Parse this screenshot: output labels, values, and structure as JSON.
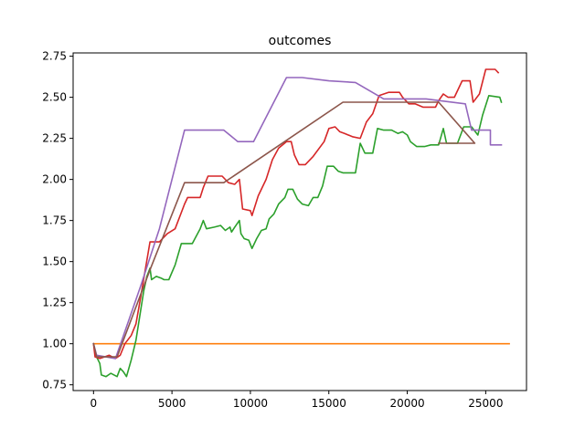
{
  "chart_data": {
    "type": "line",
    "title": "outcomes",
    "xlabel": "",
    "ylabel": "",
    "xlim": [
      -1300,
      27600
    ],
    "ylim": [
      0.715,
      2.77
    ],
    "xticks": [
      0,
      5000,
      10000,
      15000,
      20000,
      25000
    ],
    "xtick_labels": [
      "0",
      "5000",
      "10000",
      "15000",
      "20000",
      "25000"
    ],
    "yticks": [
      0.75,
      1.0,
      1.25,
      1.5,
      1.75,
      2.0,
      2.25,
      2.5,
      2.75
    ],
    "ytick_labels": [
      "0.75",
      "1.00",
      "1.25",
      "1.50",
      "1.75",
      "2.00",
      "2.25",
      "2.50",
      "2.75"
    ],
    "grid": false,
    "series": [
      {
        "color": "#ff7f0e",
        "points": [
          [
            0,
            1.0
          ],
          [
            26500,
            1.0
          ]
        ]
      },
      {
        "color": "#2ca02c",
        "points": [
          [
            0,
            1.0
          ],
          [
            200,
            0.92
          ],
          [
            400,
            0.88
          ],
          [
            500,
            0.81
          ],
          [
            800,
            0.8
          ],
          [
            1100,
            0.82
          ],
          [
            1500,
            0.8
          ],
          [
            1700,
            0.85
          ],
          [
            1900,
            0.83
          ],
          [
            2100,
            0.8
          ],
          [
            2400,
            0.9
          ],
          [
            2700,
            1.02
          ],
          [
            3000,
            1.2
          ],
          [
            3200,
            1.32
          ],
          [
            3400,
            1.41
          ],
          [
            3600,
            1.46
          ],
          [
            3700,
            1.39
          ],
          [
            4000,
            1.41
          ],
          [
            4300,
            1.4
          ],
          [
            4500,
            1.39
          ],
          [
            4800,
            1.39
          ],
          [
            5200,
            1.48
          ],
          [
            5600,
            1.61
          ],
          [
            6300,
            1.61
          ],
          [
            6800,
            1.7
          ],
          [
            7000,
            1.75
          ],
          [
            7200,
            1.7
          ],
          [
            7700,
            1.71
          ],
          [
            8100,
            1.72
          ],
          [
            8400,
            1.69
          ],
          [
            8700,
            1.71
          ],
          [
            8800,
            1.68
          ],
          [
            9000,
            1.71
          ],
          [
            9300,
            1.75
          ],
          [
            9400,
            1.67
          ],
          [
            9600,
            1.64
          ],
          [
            9900,
            1.63
          ],
          [
            10100,
            1.58
          ],
          [
            10400,
            1.64
          ],
          [
            10700,
            1.69
          ],
          [
            11000,
            1.7
          ],
          [
            11200,
            1.76
          ],
          [
            11500,
            1.79
          ],
          [
            11800,
            1.85
          ],
          [
            12200,
            1.89
          ],
          [
            12400,
            1.94
          ],
          [
            12700,
            1.94
          ],
          [
            13000,
            1.88
          ],
          [
            13300,
            1.85
          ],
          [
            13700,
            1.84
          ],
          [
            14000,
            1.89
          ],
          [
            14300,
            1.89
          ],
          [
            14600,
            1.96
          ],
          [
            14900,
            2.08
          ],
          [
            15300,
            2.08
          ],
          [
            15600,
            2.05
          ],
          [
            15900,
            2.04
          ],
          [
            16300,
            2.04
          ],
          [
            16700,
            2.04
          ],
          [
            17000,
            2.22
          ],
          [
            17300,
            2.16
          ],
          [
            17800,
            2.16
          ],
          [
            18100,
            2.31
          ],
          [
            18500,
            2.3
          ],
          [
            19000,
            2.3
          ],
          [
            19400,
            2.28
          ],
          [
            19700,
            2.29
          ],
          [
            20000,
            2.27
          ],
          [
            20200,
            2.23
          ],
          [
            20600,
            2.2
          ],
          [
            21100,
            2.2
          ],
          [
            21500,
            2.21
          ],
          [
            22000,
            2.21
          ],
          [
            22300,
            2.31
          ],
          [
            22500,
            2.22
          ],
          [
            22800,
            2.22
          ],
          [
            23200,
            2.22
          ],
          [
            23600,
            2.32
          ],
          [
            24100,
            2.32
          ],
          [
            24500,
            2.27
          ],
          [
            24800,
            2.39
          ],
          [
            25200,
            2.51
          ],
          [
            25900,
            2.5
          ],
          [
            26000,
            2.47
          ]
        ]
      },
      {
        "color": "#d62728",
        "points": [
          [
            0,
            1.0
          ],
          [
            100,
            0.92
          ],
          [
            400,
            0.91
          ],
          [
            700,
            0.92
          ],
          [
            1000,
            0.93
          ],
          [
            1400,
            0.91
          ],
          [
            1700,
            0.93
          ],
          [
            2000,
            1.0
          ],
          [
            2400,
            1.05
          ],
          [
            2700,
            1.12
          ],
          [
            3000,
            1.28
          ],
          [
            3300,
            1.45
          ],
          [
            3600,
            1.62
          ],
          [
            4200,
            1.62
          ],
          [
            4700,
            1.67
          ],
          [
            5200,
            1.7
          ],
          [
            5800,
            1.85
          ],
          [
            6000,
            1.89
          ],
          [
            6800,
            1.89
          ],
          [
            7000,
            1.95
          ],
          [
            7300,
            2.02
          ],
          [
            8200,
            2.02
          ],
          [
            8600,
            1.98
          ],
          [
            9000,
            1.97
          ],
          [
            9300,
            2.0
          ],
          [
            9500,
            1.82
          ],
          [
            10000,
            1.81
          ],
          [
            10100,
            1.78
          ],
          [
            10500,
            1.9
          ],
          [
            11000,
            2.0
          ],
          [
            11400,
            2.12
          ],
          [
            11800,
            2.19
          ],
          [
            12300,
            2.23
          ],
          [
            12600,
            2.23
          ],
          [
            12800,
            2.15
          ],
          [
            13100,
            2.09
          ],
          [
            13500,
            2.09
          ],
          [
            14000,
            2.14
          ],
          [
            14700,
            2.23
          ],
          [
            15000,
            2.31
          ],
          [
            15400,
            2.32
          ],
          [
            15700,
            2.29
          ],
          [
            16000,
            2.28
          ],
          [
            16500,
            2.26
          ],
          [
            17000,
            2.25
          ],
          [
            17400,
            2.35
          ],
          [
            17800,
            2.4
          ],
          [
            18200,
            2.51
          ],
          [
            18800,
            2.53
          ],
          [
            19500,
            2.53
          ],
          [
            19700,
            2.5
          ],
          [
            20100,
            2.46
          ],
          [
            20500,
            2.46
          ],
          [
            21000,
            2.44
          ],
          [
            21400,
            2.44
          ],
          [
            21800,
            2.44
          ],
          [
            22000,
            2.48
          ],
          [
            22300,
            2.52
          ],
          [
            22600,
            2.5
          ],
          [
            23000,
            2.5
          ],
          [
            23500,
            2.6
          ],
          [
            24000,
            2.6
          ],
          [
            24200,
            2.47
          ],
          [
            24600,
            2.52
          ],
          [
            25000,
            2.67
          ],
          [
            25600,
            2.67
          ],
          [
            25800,
            2.65
          ]
        ]
      },
      {
        "color": "#9467bd",
        "points": [
          [
            0,
            1.0
          ],
          [
            200,
            0.93
          ],
          [
            1400,
            0.91
          ],
          [
            1800,
            1.02
          ],
          [
            3000,
            1.35
          ],
          [
            4200,
            1.7
          ],
          [
            5800,
            2.3
          ],
          [
            8300,
            2.3
          ],
          [
            9200,
            2.23
          ],
          [
            10200,
            2.23
          ],
          [
            12300,
            2.62
          ],
          [
            13300,
            2.62
          ],
          [
            15000,
            2.6
          ],
          [
            16700,
            2.59
          ],
          [
            18500,
            2.49
          ],
          [
            21200,
            2.49
          ],
          [
            23700,
            2.46
          ],
          [
            24100,
            2.3
          ],
          [
            25300,
            2.3
          ],
          [
            25300,
            2.21
          ],
          [
            26000,
            2.21
          ]
        ]
      },
      {
        "color": "#8c564b",
        "points": [
          [
            0,
            1.0
          ],
          [
            200,
            0.92
          ],
          [
            1500,
            0.92
          ],
          [
            3600,
            1.45
          ],
          [
            5800,
            1.98
          ],
          [
            8300,
            1.98
          ],
          [
            15900,
            2.47
          ],
          [
            22000,
            2.47
          ],
          [
            24300,
            2.22
          ],
          [
            22000,
            2.22
          ]
        ]
      }
    ]
  }
}
